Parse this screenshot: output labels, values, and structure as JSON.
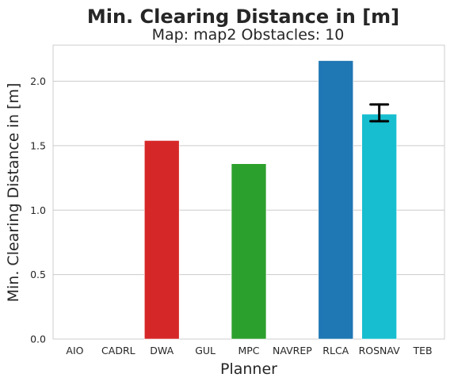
{
  "chart_data": {
    "type": "bar",
    "title": "Min. Clearing Distance in [m]",
    "subtitle": "Map: map2 Obstacles: 10",
    "xlabel": "Planner",
    "ylabel": "Min. Clearing Distance in [m]",
    "categories": [
      "AIO",
      "CADRL",
      "DWA",
      "GUL",
      "MPC",
      "NAVREP",
      "RLCA",
      "ROSNAV",
      "TEB"
    ],
    "values": [
      0,
      0,
      1.54,
      0,
      1.36,
      0,
      2.16,
      1.745,
      0
    ],
    "error_low": [
      null,
      null,
      null,
      null,
      null,
      null,
      null,
      1.69,
      null
    ],
    "error_high": [
      null,
      null,
      null,
      null,
      null,
      null,
      null,
      1.82,
      null
    ],
    "colors": [
      "#1f77b4",
      "#ff7f0e",
      "#d62728",
      "#8c564b",
      "#2ca02c",
      "#9467bd",
      "#1f77b4",
      "#17becf",
      "#7f7f7f"
    ],
    "ylim": [
      0,
      2.28
    ],
    "yticks": [
      "0.0",
      "0.5",
      "1.0",
      "1.5",
      "2.0"
    ],
    "grid": true,
    "grid_axis": "y",
    "style": "whitegrid"
  }
}
